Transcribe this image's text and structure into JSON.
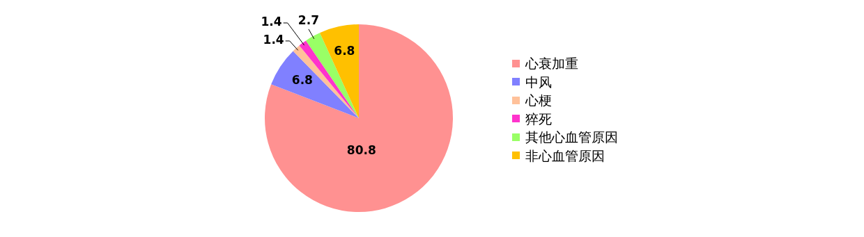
{
  "chart_data": {
    "type": "pie",
    "categories": [
      "心衰加重",
      "中风",
      "心梗",
      "猝死",
      "其他心血管原因",
      "非心血管原因"
    ],
    "values": [
      80.8,
      6.8,
      1.4,
      1.4,
      2.7,
      6.8
    ],
    "colors": [
      "#ff9191",
      "#8080ff",
      "#ffc19a",
      "#ff33cc",
      "#99ff66",
      "#ffc000"
    ],
    "data_labels": true,
    "legend": "right"
  }
}
